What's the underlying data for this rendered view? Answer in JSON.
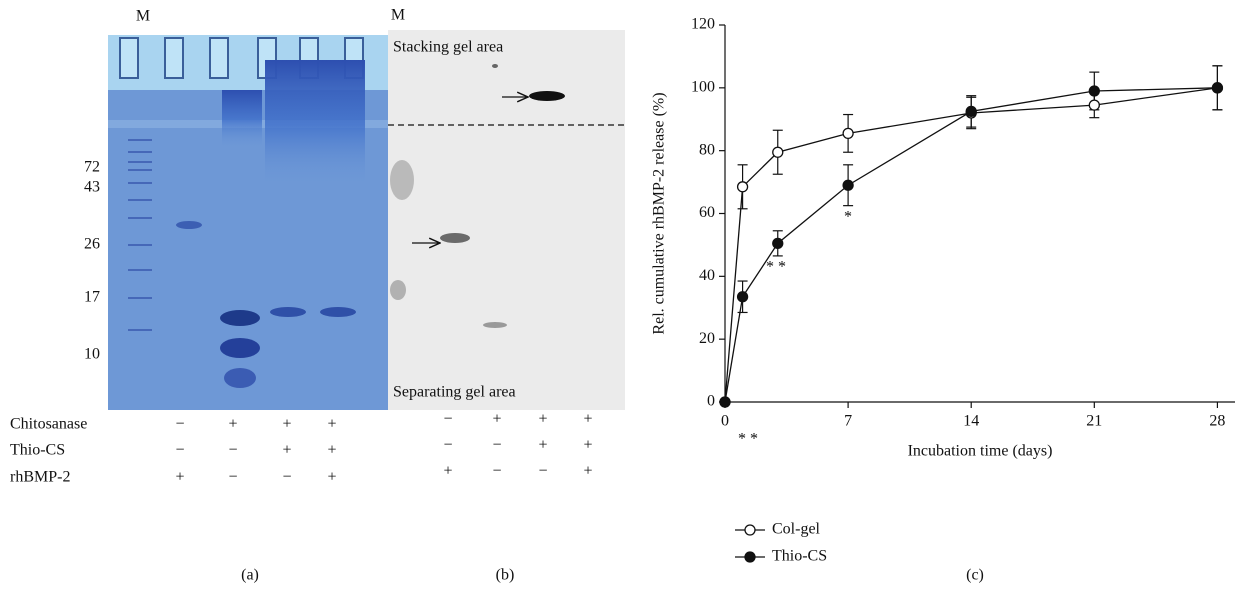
{
  "gel_a": {
    "lane_label": "M",
    "markers": [
      72,
      43,
      26,
      17,
      10
    ],
    "panel": "(a)",
    "rows": [
      {
        "label": "Chitosanase",
        "cells": [
          "−",
          "+",
          "+",
          "+"
        ]
      },
      {
        "label": "Thio-CS",
        "cells": [
          "−",
          "−",
          "+",
          "+"
        ]
      },
      {
        "label": "rhBMP-2",
        "cells": [
          "+",
          "−",
          "−",
          "+"
        ]
      }
    ]
  },
  "gel_b": {
    "lane_label": "M",
    "top_label": "Stacking gel area",
    "bottom_label": "Separating gel area",
    "panel": "(b)",
    "rows": [
      [
        "−",
        "+",
        "+",
        "+"
      ],
      [
        "−",
        "−",
        "+",
        "+"
      ],
      [
        "+",
        "−",
        "−",
        "+"
      ]
    ]
  },
  "chart_data": {
    "type": "line",
    "panel": "(c)",
    "x_label": "Incubation time (days)",
    "y_label": "Rel. cumulative rhBMP-2 release (%)",
    "x": [
      0,
      1,
      3,
      7,
      14,
      21,
      28
    ],
    "xlim": [
      0,
      29
    ],
    "xticks": [
      0,
      7,
      14,
      21,
      28
    ],
    "ylim": [
      0,
      120
    ],
    "yticks": [
      0,
      20,
      40,
      60,
      80,
      100,
      120
    ],
    "series": [
      {
        "name": "Col-gel",
        "color": "#111111",
        "marker": "open",
        "values": [
          0,
          68.5,
          79.5,
          85.5,
          92,
          94.5,
          100
        ],
        "errors": [
          0,
          7,
          7,
          6,
          5,
          4,
          7
        ]
      },
      {
        "name": "Thio-CS",
        "color": "#111111",
        "marker": "filled",
        "values": [
          0,
          33.5,
          50.5,
          69,
          92.5,
          99,
          100
        ],
        "errors": [
          0,
          5,
          4,
          6.5,
          5,
          6,
          7
        ]
      }
    ],
    "annotations": [
      "* *",
      "* *",
      "*"
    ]
  }
}
